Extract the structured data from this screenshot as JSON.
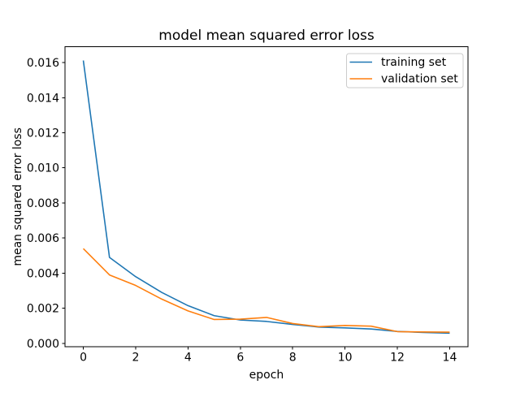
{
  "figure": {
    "background": "#ffffff",
    "spine_color": "#000000"
  },
  "chart_data": {
    "type": "line",
    "title": "model mean squared error loss",
    "xlabel": "epoch",
    "ylabel": "mean squared error loss",
    "grid": false,
    "legend_position": "upper right",
    "legend_border_color": "#cccccc",
    "xlim": [
      -0.7,
      14.7
    ],
    "ylim": [
      -0.0002,
      0.0169
    ],
    "x": [
      0,
      1,
      2,
      3,
      4,
      5,
      6,
      7,
      8,
      9,
      10,
      11,
      12,
      13,
      14
    ],
    "series": [
      {
        "name": "training set",
        "color": "#1f77b4",
        "values": [
          0.01612,
          0.0049,
          0.0038,
          0.0029,
          0.00215,
          0.00158,
          0.00133,
          0.00125,
          0.00108,
          0.00093,
          0.00088,
          0.00082,
          0.00068,
          0.00062,
          0.00058
        ]
      },
      {
        "name": "validation set",
        "color": "#ff7f0e",
        "values": [
          0.0054,
          0.0039,
          0.0033,
          0.00252,
          0.00185,
          0.00136,
          0.00138,
          0.00148,
          0.00113,
          0.00095,
          0.00102,
          0.00098,
          0.00067,
          0.00065,
          0.00064
        ]
      }
    ],
    "x_ticks": {
      "values": [
        0,
        2,
        4,
        6,
        8,
        10,
        12,
        14
      ],
      "labels": [
        "0",
        "2",
        "4",
        "6",
        "8",
        "10",
        "12",
        "14"
      ]
    },
    "y_ticks": {
      "values": [
        0.0,
        0.002,
        0.004,
        0.006,
        0.008,
        0.01,
        0.012,
        0.014,
        0.016
      ],
      "labels": [
        "0.000",
        "0.002",
        "0.004",
        "0.006",
        "0.008",
        "0.010",
        "0.012",
        "0.014",
        "0.016"
      ]
    }
  }
}
